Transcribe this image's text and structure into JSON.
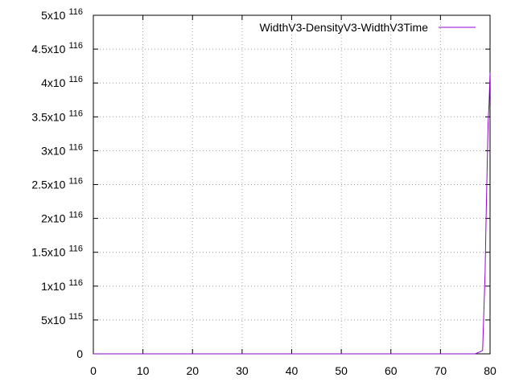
{
  "chart_data": {
    "type": "line",
    "title": "",
    "xlabel": "",
    "ylabel": "",
    "xlim": [
      0,
      80
    ],
    "ylim": [
      0,
      5e+116
    ],
    "grid": true,
    "legend_position": "top-right",
    "x_ticks": [
      {
        "value": 0,
        "label": "0"
      },
      {
        "value": 10,
        "label": "10"
      },
      {
        "value": 20,
        "label": "20"
      },
      {
        "value": 30,
        "label": "30"
      },
      {
        "value": 40,
        "label": "40"
      },
      {
        "value": 50,
        "label": "50"
      },
      {
        "value": 60,
        "label": "60"
      },
      {
        "value": 70,
        "label": "70"
      },
      {
        "value": 80,
        "label": "80"
      }
    ],
    "y_ticks": [
      {
        "value": 0,
        "mantissa": "0",
        "exponent": ""
      },
      {
        "value": 5e+115,
        "mantissa": "5x10",
        "exponent": "115"
      },
      {
        "value": 1e+116,
        "mantissa": "1x10",
        "exponent": "116"
      },
      {
        "value": 1.5e+116,
        "mantissa": "1.5x10",
        "exponent": "116"
      },
      {
        "value": 2e+116,
        "mantissa": "2x10",
        "exponent": "116"
      },
      {
        "value": 2.5e+116,
        "mantissa": "2.5x10",
        "exponent": "116"
      },
      {
        "value": 3e+116,
        "mantissa": "3x10",
        "exponent": "116"
      },
      {
        "value": 3.5e+116,
        "mantissa": "3.5x10",
        "exponent": "116"
      },
      {
        "value": 4e+116,
        "mantissa": "4x10",
        "exponent": "116"
      },
      {
        "value": 4.5e+116,
        "mantissa": "4.5x10",
        "exponent": "116"
      },
      {
        "value": 5e+116,
        "mantissa": "5x10",
        "exponent": "116"
      }
    ],
    "series": [
      {
        "name": "WidthV3-DensityV3-WidthV3Time",
        "color": "#9400d3",
        "x": [
          0,
          10,
          20,
          30,
          40,
          50,
          60,
          70,
          77,
          78,
          78.5,
          79,
          79.2,
          79.4,
          79.6,
          79.8,
          80
        ],
        "y": [
          0,
          0,
          0,
          0,
          0,
          0,
          0,
          0,
          0,
          3e+114,
          5e+114,
          1.2e+116,
          2e+116,
          2.7e+116,
          3.4e+116,
          3.7e+116,
          4.15e+116
        ]
      }
    ]
  }
}
